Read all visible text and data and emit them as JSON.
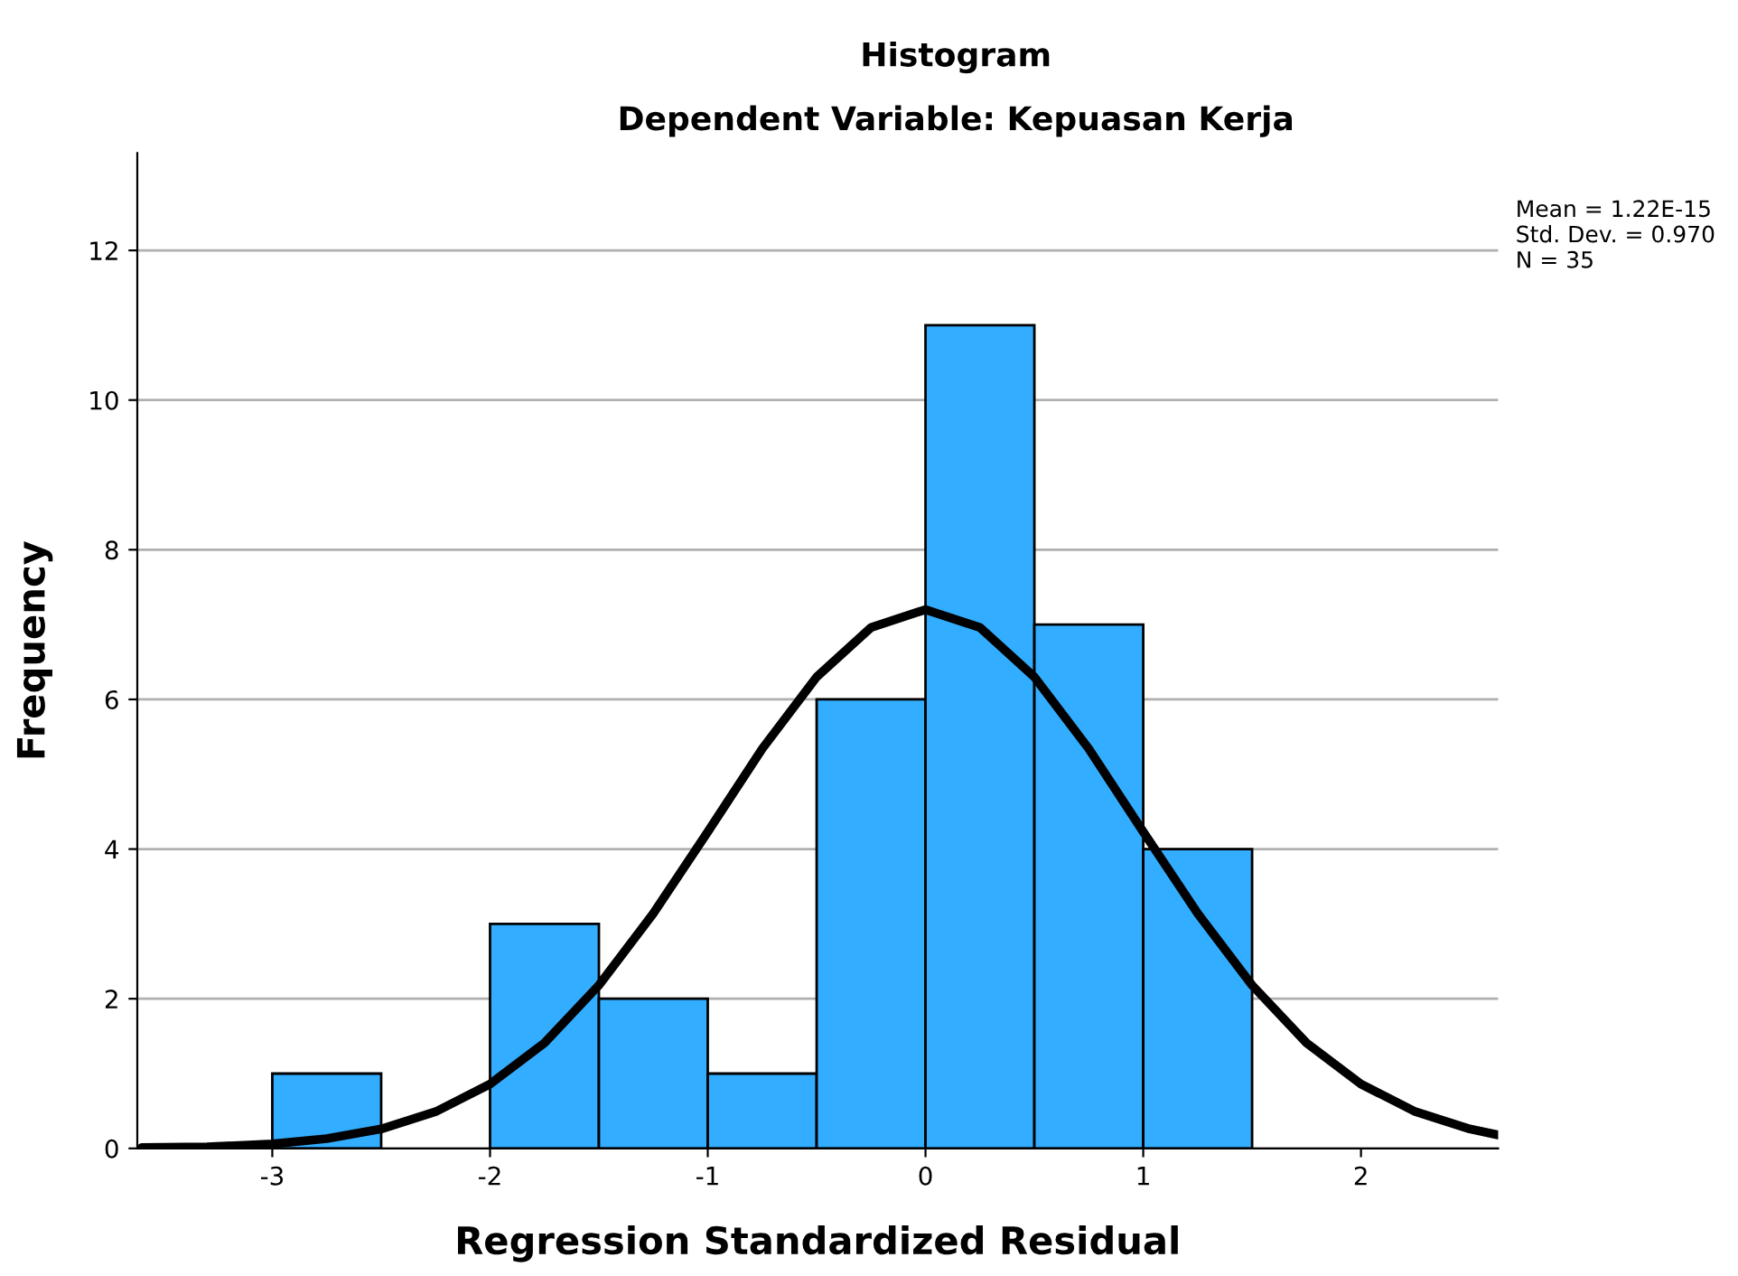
{
  "chart_data": {
    "type": "histogram",
    "title": "Histogram",
    "subtitle": "Dependent Variable: Kepuasan Kerja",
    "xlabel": "Regression Standardized Residual",
    "ylabel": "Frequency",
    "bins": [
      -3,
      -2.5,
      -2,
      -1.5,
      -1,
      -0.5,
      0,
      0.5,
      1,
      1.5
    ],
    "values": [
      1,
      0,
      3,
      2,
      1,
      6,
      11,
      7,
      4
    ],
    "color": "#33adff",
    "series": [
      {
        "type": "line",
        "color": "#000000",
        "x": [
          -3.6,
          -3.3,
          -3,
          -2.75,
          -2.5,
          -2.25,
          -2,
          -1.75,
          -1.5,
          -1.25,
          -1,
          -0.75,
          -0.5,
          -0.25,
          0,
          0.25,
          0.5,
          0.75,
          1,
          1.25,
          1.5,
          1.75,
          2,
          2.25,
          2.5,
          2.63
        ],
        "values": [
          0.01,
          0.02,
          0.06,
          0.13,
          0.26,
          0.49,
          0.86,
          1.41,
          2.18,
          3.14,
          4.23,
          5.34,
          6.3,
          6.96,
          7.2,
          6.96,
          6.3,
          5.34,
          4.23,
          3.14,
          2.18,
          1.41,
          0.86,
          0.49,
          0.26,
          0.18
        ]
      }
    ],
    "annotations": [
      "Mean = 1.22E-15",
      "Std. Dev. = 0.970",
      "N = 35"
    ],
    "xlim": [
      -3.62,
      2.63
    ],
    "ylim": [
      0,
      13.3
    ],
    "xticks": [
      -3,
      -2,
      -1,
      0,
      1,
      2
    ],
    "yticks": [
      0,
      2,
      4,
      6,
      8,
      10,
      12
    ],
    "grid": "y"
  }
}
